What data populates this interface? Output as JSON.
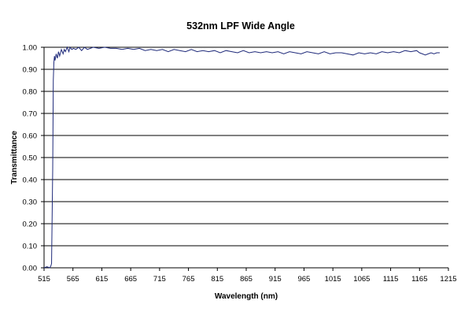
{
  "chart_data": {
    "type": "line",
    "title": "532nm LPF Wide Angle",
    "xlabel": "Wavelength (nm)",
    "ylabel": "Transmittance",
    "xlim": [
      515,
      1215
    ],
    "ylim": [
      0,
      1
    ],
    "x_ticks": [
      "515",
      "565",
      "615",
      "665",
      "715",
      "765",
      "815",
      "865",
      "915",
      "965",
      "1015",
      "1065",
      "1115",
      "1165",
      "1215"
    ],
    "y_ticks": [
      "0.00",
      "0.10",
      "0.20",
      "0.30",
      "0.40",
      "0.50",
      "0.60",
      "0.70",
      "0.80",
      "0.90",
      "1.00"
    ],
    "grid": "horizontal",
    "legend": "none",
    "line_color": "#1f2a7a",
    "series": [
      {
        "x": [
          515,
          520,
          525,
          527,
          528,
          530,
          531,
          532,
          533,
          534,
          536,
          538,
          540,
          542,
          545,
          548,
          550,
          552,
          555,
          558,
          560,
          563,
          566,
          570,
          575,
          580,
          585,
          590,
          600,
          610,
          620,
          630,
          640,
          650,
          660,
          670,
          680,
          690,
          700,
          710,
          720,
          730,
          740,
          750,
          760,
          770,
          780,
          790,
          800,
          810,
          820,
          830,
          840,
          850,
          860,
          870,
          880,
          890,
          900,
          910,
          920,
          930,
          940,
          950,
          960,
          970,
          980,
          990,
          1000,
          1010,
          1020,
          1030,
          1040,
          1050,
          1060,
          1070,
          1080,
          1090,
          1100,
          1110,
          1120,
          1130,
          1140,
          1150,
          1160,
          1165,
          1170,
          1175,
          1180,
          1185,
          1190,
          1195,
          1200
        ],
        "y": [
          0.0,
          0.005,
          0.0,
          0.01,
          0.02,
          0.45,
          0.85,
          0.93,
          0.96,
          0.94,
          0.97,
          0.95,
          0.98,
          0.96,
          0.99,
          0.97,
          0.99,
          0.98,
          1.0,
          0.98,
          1.0,
          0.99,
          0.995,
          0.99,
          1.0,
          0.985,
          1.0,
          0.99,
          1.0,
          0.995,
          1.0,
          0.995,
          0.995,
          0.99,
          0.995,
          0.99,
          0.995,
          0.985,
          0.99,
          0.985,
          0.99,
          0.98,
          0.99,
          0.985,
          0.98,
          0.99,
          0.98,
          0.985,
          0.98,
          0.985,
          0.975,
          0.985,
          0.98,
          0.975,
          0.985,
          0.975,
          0.98,
          0.975,
          0.98,
          0.975,
          0.98,
          0.97,
          0.98,
          0.975,
          0.97,
          0.98,
          0.975,
          0.97,
          0.98,
          0.97,
          0.975,
          0.975,
          0.97,
          0.965,
          0.975,
          0.97,
          0.975,
          0.97,
          0.98,
          0.975,
          0.98,
          0.975,
          0.985,
          0.98,
          0.985,
          0.975,
          0.97,
          0.965,
          0.97,
          0.975,
          0.97,
          0.975,
          0.975
        ]
      }
    ]
  }
}
